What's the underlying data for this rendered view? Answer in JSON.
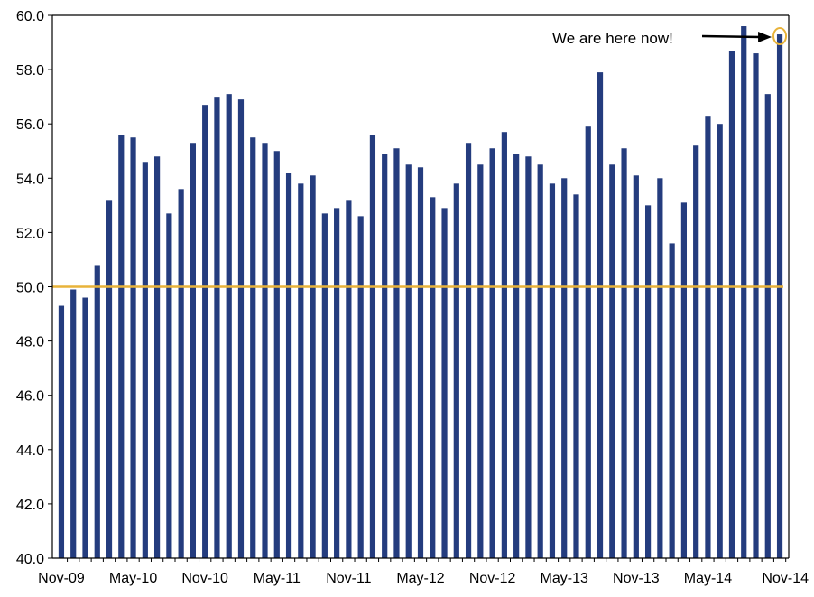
{
  "chart_data": {
    "type": "bar",
    "categories": [
      "Nov-09",
      "Dec-09",
      "Jan-10",
      "Feb-10",
      "Mar-10",
      "Apr-10",
      "May-10",
      "Jun-10",
      "Jul-10",
      "Aug-10",
      "Sep-10",
      "Oct-10",
      "Nov-10",
      "Dec-10",
      "Jan-11",
      "Feb-11",
      "Mar-11",
      "Apr-11",
      "May-11",
      "Jun-11",
      "Jul-11",
      "Aug-11",
      "Sep-11",
      "Oct-11",
      "Nov-11",
      "Dec-11",
      "Jan-12",
      "Feb-12",
      "Mar-12",
      "Apr-12",
      "May-12",
      "Jun-12",
      "Jul-12",
      "Aug-12",
      "Sep-12",
      "Oct-12",
      "Nov-12",
      "Dec-12",
      "Jan-13",
      "Feb-13",
      "Mar-13",
      "Apr-13",
      "May-13",
      "Jun-13",
      "Jul-13",
      "Aug-13",
      "Sep-13",
      "Oct-13",
      "Nov-13",
      "Dec-13",
      "Jan-14",
      "Feb-14",
      "Mar-14",
      "Apr-14",
      "May-14",
      "Jun-14",
      "Jul-14",
      "Aug-14",
      "Sep-14",
      "Oct-14",
      "Nov-14"
    ],
    "values": [
      49.3,
      49.9,
      49.6,
      50.8,
      53.2,
      55.6,
      55.5,
      54.6,
      54.8,
      52.7,
      53.6,
      55.3,
      56.7,
      57.0,
      57.1,
      56.9,
      55.5,
      55.3,
      55.0,
      54.2,
      53.8,
      54.1,
      52.7,
      52.9,
      53.2,
      52.6,
      55.6,
      54.9,
      55.1,
      54.5,
      54.4,
      53.3,
      52.9,
      53.8,
      55.3,
      54.5,
      55.1,
      55.7,
      54.9,
      54.8,
      54.5,
      53.8,
      54.0,
      53.4,
      55.9,
      57.9,
      54.5,
      55.1,
      54.1,
      53.0,
      54.0,
      51.6,
      53.1,
      55.2,
      56.3,
      56.0,
      58.7,
      59.6,
      58.6,
      57.1,
      59.3
    ],
    "x_tick_labels": [
      "Nov-09",
      "May-10",
      "Nov-10",
      "May-11",
      "Nov-11",
      "May-12",
      "Nov-12",
      "May-13",
      "Nov-13",
      "May-14",
      "Nov-14"
    ],
    "y_tick_labels": [
      "40.0",
      "42.0",
      "44.0",
      "46.0",
      "48.0",
      "50.0",
      "52.0",
      "54.0",
      "56.0",
      "58.0",
      "60.0"
    ],
    "ylim": [
      40,
      60
    ],
    "reference_line": 50,
    "annotation": "We are here now!",
    "title": "",
    "xlabel": "",
    "ylabel": "",
    "grid": false,
    "colors": {
      "bar": "#243C7E",
      "reference_line": "#E8B33A",
      "annotation_circle": "#E8B33A",
      "axis": "#000000"
    }
  }
}
